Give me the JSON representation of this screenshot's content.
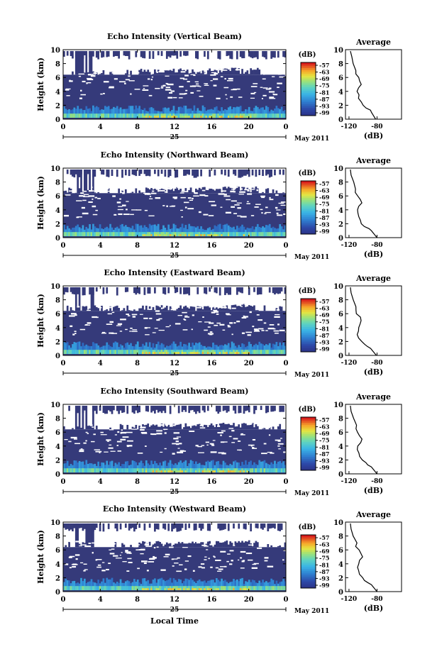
{
  "figure": {
    "xlabel_bottom": "Local Time",
    "date_label": "May 2011",
    "day_label": "25",
    "colorbar_unit": "(dB)",
    "colorbar_ticks": [
      "-57",
      "-63",
      "-69",
      "-75",
      "-81",
      "-87",
      "-93",
      "-99"
    ],
    "profile_title": "Average",
    "profile_xlabel": "(dB)",
    "colors": {
      "background_echo": "#353a7a",
      "noise_floor": "#ffffff",
      "scale_low": "#2b2f82",
      "scale_high": "#d7191c"
    }
  },
  "chart_data": [
    {
      "type": "heatmap",
      "title": "Echo Intensity (Vertical Beam)",
      "ylabel": "Height (km)",
      "xlim": [
        0,
        24
      ],
      "ylim": [
        0,
        10
      ],
      "xticks": [
        "0",
        "4",
        "8",
        "12",
        "16",
        "20",
        "0"
      ],
      "yticks": [
        "0",
        "2",
        "4",
        "6",
        "8",
        "10"
      ],
      "colorbar_range": [
        -99,
        -57
      ],
      "profile": {
        "title": "Average",
        "xlabel": "(dB)",
        "xticks": [
          "-120",
          "-80"
        ],
        "ylim": [
          0,
          10
        ],
        "x": [
          -82,
          -85,
          -88,
          -90,
          -95,
          -100,
          -104,
          -106,
          -107,
          -108,
          -106,
          -103,
          -104,
          -107,
          -110,
          -109,
          -113,
          -116,
          -118
        ],
        "y": [
          0.0,
          0.5,
          1.0,
          1.3,
          1.6,
          2.0,
          2.5,
          3.0,
          3.5,
          4.0,
          4.5,
          5.0,
          5.5,
          6.0,
          6.5,
          7.0,
          8.0,
          9.0,
          9.8
        ]
      }
    },
    {
      "type": "heatmap",
      "title": "Echo Intensity (Northward Beam)",
      "ylabel": "Height (km)",
      "xlim": [
        0,
        24
      ],
      "ylim": [
        0,
        10
      ],
      "xticks": [
        "0",
        "4",
        "8",
        "12",
        "16",
        "20",
        "0"
      ],
      "yticks": [
        "0",
        "2",
        "4",
        "6",
        "8",
        "10"
      ],
      "colorbar_range": [
        -99,
        -57
      ],
      "profile": {
        "title": "Average",
        "xlabel": "(dB)",
        "xticks": [
          "-120",
          "-80"
        ],
        "ylim": [
          0,
          10
        ],
        "x": [
          -80,
          -84,
          -88,
          -92,
          -97,
          -101,
          -105,
          -107,
          -108,
          -107,
          -105,
          -103,
          -105,
          -108,
          -111,
          -110,
          -114,
          -117,
          -118
        ],
        "y": [
          0.0,
          0.5,
          1.0,
          1.3,
          1.6,
          2.0,
          2.5,
          3.0,
          3.5,
          4.0,
          4.5,
          5.0,
          5.5,
          6.0,
          6.5,
          7.0,
          8.0,
          9.0,
          9.8
        ]
      }
    },
    {
      "type": "heatmap",
      "title": "Echo Intensity (Eastward Beam)",
      "ylabel": "Height (km)",
      "xlim": [
        0,
        24
      ],
      "ylim": [
        0,
        10
      ],
      "xticks": [
        "0",
        "4",
        "8",
        "12",
        "16",
        "20",
        "0"
      ],
      "yticks": [
        "0",
        "2",
        "4",
        "6",
        "8",
        "10"
      ],
      "colorbar_range": [
        -99,
        -57
      ],
      "profile": {
        "title": "Average",
        "xlabel": "(dB)",
        "xticks": [
          "-120",
          "-80"
        ],
        "ylim": [
          0,
          10
        ],
        "x": [
          -81,
          -85,
          -89,
          -93,
          -98,
          -102,
          -105,
          -107,
          -108,
          -106,
          -104,
          -103,
          -105,
          -108,
          -111,
          -110,
          -114,
          -117,
          -118
        ],
        "y": [
          0.0,
          0.5,
          1.0,
          1.3,
          1.6,
          2.0,
          2.5,
          3.0,
          3.5,
          4.0,
          4.5,
          5.0,
          5.5,
          6.0,
          6.5,
          7.0,
          8.0,
          9.0,
          9.8
        ]
      }
    },
    {
      "type": "heatmap",
      "title": "Echo Intensity (Southward Beam)",
      "ylabel": "Height (km)",
      "xlim": [
        0,
        24
      ],
      "ylim": [
        0,
        10
      ],
      "xticks": [
        "0",
        "4",
        "8",
        "12",
        "16",
        "20",
        "0"
      ],
      "yticks": [
        "0",
        "2",
        "4",
        "6",
        "8",
        "10"
      ],
      "colorbar_range": [
        -99,
        -57
      ],
      "profile": {
        "title": "Average",
        "xlabel": "(dB)",
        "xticks": [
          "-120",
          "-80"
        ],
        "ylim": [
          0,
          10
        ],
        "x": [
          -80,
          -84,
          -88,
          -92,
          -97,
          -101,
          -105,
          -107,
          -107,
          -106,
          -104,
          -102,
          -104,
          -107,
          -110,
          -110,
          -114,
          -117,
          -118
        ],
        "y": [
          0.0,
          0.5,
          1.0,
          1.3,
          1.6,
          2.0,
          2.5,
          3.0,
          3.5,
          4.0,
          4.5,
          5.0,
          5.5,
          6.0,
          6.5,
          7.0,
          8.0,
          9.0,
          9.8
        ]
      }
    },
    {
      "type": "heatmap",
      "title": "Echo Intensity (Westward Beam)",
      "ylabel": "Height (km)",
      "xlim": [
        0,
        24
      ],
      "ylim": [
        0,
        10
      ],
      "xticks": [
        "0",
        "4",
        "8",
        "12",
        "16",
        "20",
        "0"
      ],
      "yticks": [
        "0",
        "2",
        "4",
        "6",
        "8",
        "10"
      ],
      "colorbar_range": [
        -99,
        -57
      ],
      "profile": {
        "title": "Average",
        "xlabel": "(dB)",
        "xticks": [
          "-120",
          "-80"
        ],
        "ylim": [
          0,
          10
        ],
        "x": [
          -80,
          -84,
          -88,
          -92,
          -97,
          -101,
          -105,
          -107,
          -108,
          -106,
          -104,
          -102,
          -104,
          -107,
          -110,
          -110,
          -114,
          -117,
          -118
        ],
        "y": [
          0.0,
          0.5,
          1.0,
          1.3,
          1.6,
          2.0,
          2.5,
          3.0,
          3.5,
          4.0,
          4.5,
          5.0,
          5.5,
          6.0,
          6.5,
          7.0,
          8.0,
          9.0,
          9.8
        ]
      }
    }
  ]
}
